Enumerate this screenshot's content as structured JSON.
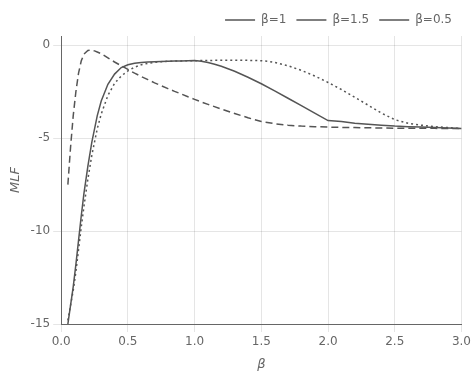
{
  "chart_data": {
    "type": "line",
    "xlabel": "β",
    "ylabel": "MLF",
    "xlim": [
      0,
      3
    ],
    "ylim": [
      -15,
      0.5
    ],
    "xticks": [
      {
        "value": 0,
        "label": "0.0"
      },
      {
        "value": 0.5,
        "label": "0.5"
      },
      {
        "value": 1,
        "label": "1.0"
      },
      {
        "value": 1.5,
        "label": "1.5"
      },
      {
        "value": 2,
        "label": "2.0"
      },
      {
        "value": 2.5,
        "label": "2.5"
      },
      {
        "value": 3,
        "label": "3.0"
      }
    ],
    "yticks": [
      0,
      -5,
      -10,
      -15
    ],
    "grid": true,
    "legend": "upper right",
    "series": [
      {
        "name": "β=1",
        "color": "#555555",
        "line_style": "solid",
        "x": [
          0.05,
          0.07,
          0.09,
          0.11,
          0.13,
          0.15,
          0.17,
          0.2,
          0.23,
          0.27,
          0.3,
          0.35,
          0.4,
          0.45,
          0.5,
          0.55,
          0.6,
          0.65,
          0.7,
          0.75,
          0.8,
          0.85,
          0.9,
          0.95,
          1.0,
          1.05,
          1.1,
          1.15,
          1.2,
          1.3,
          1.4,
          1.5,
          1.6,
          1.7,
          1.8,
          1.9,
          2.0,
          2.1,
          2.2,
          2.3,
          2.4,
          2.5,
          2.6,
          2.7,
          2.8,
          2.9,
          3.0
        ],
        "values": [
          -15.0,
          -14.0,
          -13.0,
          -11.8,
          -10.5,
          -9.2,
          -8.0,
          -6.5,
          -5.2,
          -3.8,
          -3.0,
          -2.1,
          -1.55,
          -1.2,
          -1.05,
          -0.97,
          -0.93,
          -0.9,
          -0.88,
          -0.87,
          -0.86,
          -0.85,
          -0.84,
          -0.83,
          -0.82,
          -0.86,
          -0.93,
          -1.02,
          -1.13,
          -1.4,
          -1.72,
          -2.07,
          -2.45,
          -2.85,
          -3.25,
          -3.65,
          -4.05,
          -4.1,
          -4.2,
          -4.25,
          -4.3,
          -4.35,
          -4.38,
          -4.4,
          -4.43,
          -4.45,
          -4.48
        ]
      },
      {
        "name": "β=1.5",
        "color": "#555555",
        "line_style": "dotted",
        "x": [
          0.05,
          0.07,
          0.09,
          0.11,
          0.13,
          0.15,
          0.17,
          0.2,
          0.23,
          0.27,
          0.3,
          0.35,
          0.4,
          0.45,
          0.5,
          0.55,
          0.6,
          0.65,
          0.7,
          0.75,
          0.8,
          0.85,
          0.9,
          0.95,
          1.0,
          1.05,
          1.1,
          1.15,
          1.2,
          1.25,
          1.3,
          1.35,
          1.4,
          1.45,
          1.5,
          1.55,
          1.6,
          1.7,
          1.8,
          1.9,
          2.0,
          2.1,
          2.2,
          2.3,
          2.4,
          2.5,
          2.6,
          2.7,
          2.8,
          2.9,
          3.0
        ],
        "values": [
          -14.8,
          -14.0,
          -13.2,
          -12.2,
          -11.0,
          -9.8,
          -8.7,
          -7.2,
          -5.9,
          -4.5,
          -3.7,
          -2.7,
          -2.05,
          -1.65,
          -1.38,
          -1.18,
          -1.05,
          -0.97,
          -0.92,
          -0.88,
          -0.86,
          -0.85,
          -0.84,
          -0.83,
          -0.83,
          -0.82,
          -0.82,
          -0.81,
          -0.81,
          -0.8,
          -0.8,
          -0.8,
          -0.81,
          -0.82,
          -0.83,
          -0.86,
          -0.92,
          -1.1,
          -1.35,
          -1.65,
          -2.0,
          -2.38,
          -2.8,
          -3.22,
          -3.65,
          -4.0,
          -4.2,
          -4.3,
          -4.38,
          -4.43,
          -4.48
        ]
      },
      {
        "name": "β=0.5",
        "color": "#555555",
        "line_style": "dashed",
        "x": [
          0.05,
          0.07,
          0.09,
          0.11,
          0.13,
          0.15,
          0.17,
          0.2,
          0.22,
          0.25,
          0.27,
          0.3,
          0.35,
          0.4,
          0.45,
          0.5,
          0.55,
          0.6,
          0.65,
          0.7,
          0.75,
          0.8,
          0.85,
          0.9,
          0.95,
          1.0,
          1.05,
          1.1,
          1.2,
          1.3,
          1.4,
          1.5,
          1.6,
          1.7,
          1.8,
          1.9,
          2.0,
          2.1,
          2.2,
          2.3,
          2.4,
          2.5,
          2.6,
          2.7,
          2.8,
          2.9,
          3.0
        ],
        "values": [
          -7.5,
          -5.5,
          -3.8,
          -2.5,
          -1.5,
          -0.85,
          -0.48,
          -0.28,
          -0.27,
          -0.3,
          -0.36,
          -0.45,
          -0.68,
          -0.9,
          -1.1,
          -1.3,
          -1.5,
          -1.68,
          -1.85,
          -2.02,
          -2.18,
          -2.33,
          -2.48,
          -2.62,
          -2.77,
          -2.91,
          -3.05,
          -3.18,
          -3.43,
          -3.67,
          -3.9,
          -4.1,
          -4.22,
          -4.3,
          -4.35,
          -4.38,
          -4.4,
          -4.42,
          -4.43,
          -4.44,
          -4.45,
          -4.46,
          -4.47,
          -4.47,
          -4.47,
          -4.48,
          -4.48
        ]
      }
    ]
  }
}
